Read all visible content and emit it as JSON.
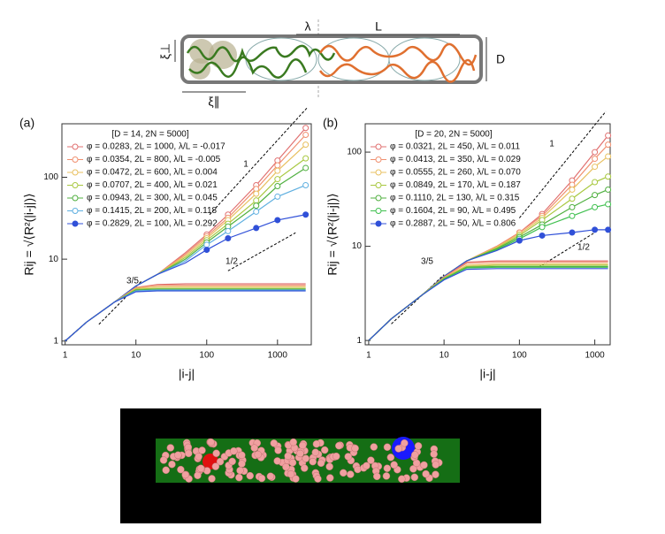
{
  "schematic": {
    "labels": {
      "lambda": "λ",
      "L": "L",
      "D": "D",
      "xi_perp": "ξ⊥",
      "xi_par": "ξ∥"
    }
  },
  "chart_data": [
    {
      "type": "line",
      "panel_label": "(a)",
      "legend_title": "[D = 14,  2N = 5000]",
      "x_label": "|i-j|",
      "y_label": "Rij = √⟨R²(|i-j|)⟩",
      "log_scale": true,
      "xlim": [
        0.9,
        3000
      ],
      "ylim": [
        0.9,
        450
      ],
      "xticks": [
        1,
        10,
        100,
        1000
      ],
      "yticks": [
        1,
        10,
        100
      ],
      "annotations": [
        "3/5",
        "1",
        "1/2"
      ],
      "x": [
        1,
        2,
        5,
        10,
        20,
        50,
        100,
        200,
        500,
        1000,
        2500
      ],
      "series": [
        {
          "name": "φ = 0.0283, 2L = 1000, λ/L = -0.017",
          "color": "#e07070",
          "values": [
            1,
            1.7,
            3,
            4.7,
            6.5,
            12,
            20,
            35,
            80,
            160,
            400
          ]
        },
        {
          "name": "φ = 0.0354, 2L = 800, λ/L = -0.005",
          "color": "#f09070",
          "values": [
            1,
            1.7,
            3,
            4.7,
            6.5,
            11.5,
            19,
            32,
            72,
            140,
            330
          ]
        },
        {
          "name": "φ = 0.0472, 2L = 600, λ/L = 0.004",
          "color": "#e8c060",
          "values": [
            1,
            1.7,
            3,
            4.7,
            6.5,
            11,
            18,
            30,
            63,
            120,
            250
          ]
        },
        {
          "name": "φ = 0.0707, 2L = 400, λ/L = 0.021",
          "color": "#a8c840",
          "values": [
            1,
            1.7,
            3,
            4.7,
            6.5,
            10.5,
            17,
            27,
            52,
            95,
            170
          ]
        },
        {
          "name": "φ = 0.0943, 2L = 300, λ/L = 0.045",
          "color": "#50b040",
          "values": [
            1,
            1.7,
            3,
            4.7,
            6.5,
            10,
            16,
            25,
            45,
            78,
            130
          ]
        },
        {
          "name": "φ = 0.1415, 2L = 200, λ/L = 0.118",
          "color": "#60b0e0",
          "values": [
            1,
            1.7,
            3,
            4.7,
            6.5,
            9.5,
            15,
            22,
            38,
            58,
            80
          ]
        },
        {
          "name": "φ = 0.2829, 2L = 100, λ/L = 0.292",
          "color": "#3050d8",
          "values": [
            1,
            1.7,
            3,
            4.7,
            6.5,
            9,
            13,
            18,
            24,
            30,
            35
          ]
        },
        {
          "color": "#e07070",
          "values": [
            1,
            1.7,
            3,
            4.5,
            4.9,
            5,
            5,
            5,
            5,
            5,
            5
          ]
        },
        {
          "color": "#f09070",
          "values": [
            1,
            1.7,
            3,
            4.5,
            4.8,
            4.8,
            4.8,
            4.8,
            4.8,
            4.8,
            4.8
          ]
        },
        {
          "color": "#e8c060",
          "values": [
            1,
            1.7,
            3,
            4.4,
            4.6,
            4.6,
            4.6,
            4.6,
            4.6,
            4.6,
            4.6
          ]
        },
        {
          "color": "#a8c840",
          "values": [
            1,
            1.7,
            3,
            4.3,
            4.4,
            4.4,
            4.4,
            4.4,
            4.4,
            4.4,
            4.4
          ]
        },
        {
          "color": "#50b040",
          "values": [
            1,
            1.7,
            3,
            4.2,
            4.3,
            4.3,
            4.3,
            4.3,
            4.3,
            4.3,
            4.3
          ]
        },
        {
          "color": "#60b0e0",
          "values": [
            1,
            1.7,
            3,
            4.1,
            4.2,
            4.2,
            4.2,
            4.2,
            4.2,
            4.2,
            4.2
          ]
        },
        {
          "color": "#3050d8",
          "values": [
            1,
            1.7,
            3,
            4,
            4.1,
            4.1,
            4.1,
            4.1,
            4.1,
            4.1,
            4.1
          ]
        }
      ]
    },
    {
      "type": "line",
      "panel_label": "(b)",
      "legend_title": "[D = 20,  2N = 5000]",
      "x_label": "|i-j|",
      "y_label": "Rij = √⟨R²(|i-j|)⟩",
      "log_scale": true,
      "xlim": [
        0.9,
        1600
      ],
      "ylim": [
        0.9,
        200
      ],
      "xticks": [
        1,
        10,
        100,
        1000
      ],
      "yticks": [
        1,
        10,
        100
      ],
      "annotations": [
        "3/5",
        "1",
        "1/2"
      ],
      "x": [
        1,
        2,
        5,
        10,
        20,
        50,
        100,
        200,
        500,
        1000,
        1500
      ],
      "series": [
        {
          "name": "φ = 0.0321, 2L = 450, λ/L = 0.011",
          "color": "#e07070",
          "values": [
            1,
            1.7,
            3,
            4.8,
            7,
            10,
            14,
            22,
            50,
            100,
            150
          ]
        },
        {
          "name": "φ = 0.0413, 2L = 350, λ/L = 0.029",
          "color": "#f09070",
          "values": [
            1,
            1.7,
            3,
            4.8,
            7,
            10,
            14,
            21,
            45,
            85,
            120
          ]
        },
        {
          "name": "φ = 0.0555, 2L = 260, λ/L = 0.070",
          "color": "#e8c060",
          "values": [
            1,
            1.7,
            3,
            4.8,
            7,
            9.8,
            13.5,
            20,
            40,
            70,
            90
          ]
        },
        {
          "name": "φ = 0.0849, 2L = 170, λ/L = 0.187",
          "color": "#a8c840",
          "values": [
            1,
            1.7,
            3,
            4.8,
            7,
            9.6,
            13,
            19,
            32,
            48,
            55
          ]
        },
        {
          "name": "φ = 0.1110, 2L = 130, λ/L = 0.315",
          "color": "#50b040",
          "values": [
            1,
            1.7,
            3,
            4.8,
            7,
            9.4,
            12.5,
            17,
            26,
            35,
            40
          ]
        },
        {
          "name": "φ = 0.1604, 2L = 90, λ/L = 0.495",
          "color": "#40c050",
          "values": [
            1,
            1.7,
            3,
            4.8,
            7,
            9.2,
            12,
            16,
            21,
            26,
            28
          ]
        },
        {
          "name": "φ = 0.2887, 2L = 50, λ/L = 0.806",
          "color": "#3050d8",
          "values": [
            1,
            1.7,
            3,
            4.8,
            7,
            9,
            11.5,
            13,
            14,
            15,
            15
          ]
        },
        {
          "color": "#e07070",
          "values": [
            1,
            1.7,
            3,
            4.7,
            6.8,
            7,
            7,
            7,
            7,
            7,
            7
          ]
        },
        {
          "color": "#f09070",
          "values": [
            1,
            1.7,
            3,
            4.7,
            6.6,
            6.8,
            6.8,
            6.8,
            6.8,
            6.8,
            6.8
          ]
        },
        {
          "color": "#e8c060",
          "values": [
            1,
            1.7,
            3,
            4.6,
            6.3,
            6.5,
            6.5,
            6.5,
            6.5,
            6.5,
            6.5
          ]
        },
        {
          "color": "#a8c840",
          "values": [
            1,
            1.7,
            3,
            4.6,
            6.1,
            6.3,
            6.3,
            6.3,
            6.3,
            6.3,
            6.3
          ]
        },
        {
          "color": "#50b040",
          "values": [
            1,
            1.7,
            3,
            4.5,
            6,
            6.1,
            6.1,
            6.1,
            6.1,
            6.1,
            6.1
          ]
        },
        {
          "color": "#40c050",
          "values": [
            1,
            1.7,
            3,
            4.5,
            5.9,
            6,
            6,
            6,
            6,
            6,
            6
          ]
        },
        {
          "color": "#3050d8",
          "values": [
            1,
            1.7,
            3,
            4.4,
            5.7,
            5.8,
            5.8,
            5.8,
            5.8,
            5.8,
            5.8
          ]
        }
      ]
    }
  ]
}
